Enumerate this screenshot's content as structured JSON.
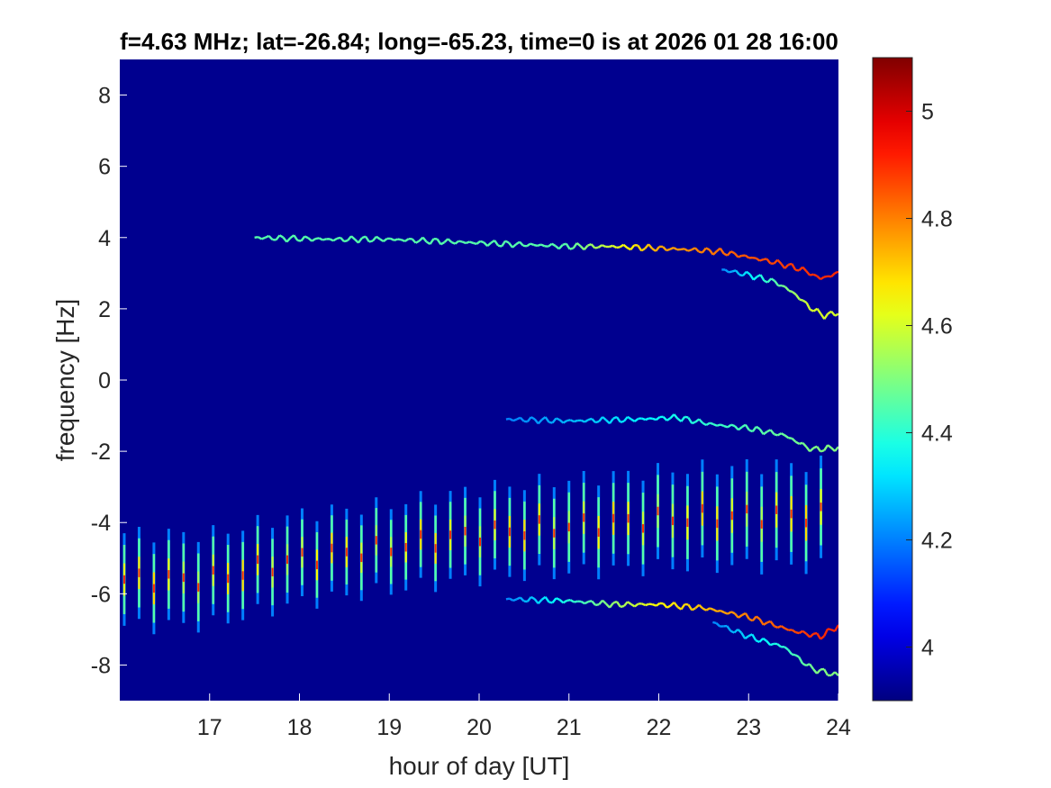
{
  "chart_data": {
    "type": "heatmap",
    "title": "f=4.63 MHz;  lat=-26.84; long=-65.23, time=0 is at 2026 01 28 16:00",
    "xlabel": "hour of day [UT]",
    "ylabel": "frequency [Hz]",
    "xlim": [
      16,
      24
    ],
    "ylim": [
      -9,
      9
    ],
    "x_ticks": [
      17,
      18,
      19,
      20,
      21,
      22,
      23,
      24
    ],
    "y_ticks": [
      -8,
      -6,
      -4,
      -2,
      0,
      2,
      4,
      6,
      8
    ],
    "background_value": 3.9,
    "colorbar": {
      "colormap": "jet",
      "clim": [
        3.9,
        5.1
      ],
      "ticks": [
        4,
        4.2,
        4.4,
        4.6,
        4.8,
        5
      ]
    },
    "traces": [
      {
        "points": [
          [
            17.5,
            4.0
          ],
          [
            18.3,
            3.95
          ],
          [
            19.0,
            3.95
          ],
          [
            19.5,
            3.9
          ],
          [
            20.0,
            3.85
          ],
          [
            20.5,
            3.8
          ],
          [
            21.0,
            3.75
          ],
          [
            21.5,
            3.75
          ],
          [
            22.0,
            3.7
          ],
          [
            22.4,
            3.65
          ],
          [
            22.7,
            3.6
          ],
          [
            23.0,
            3.45
          ],
          [
            23.3,
            3.3
          ],
          [
            23.6,
            3.1
          ],
          [
            23.8,
            2.85
          ],
          [
            24.0,
            3.0
          ]
        ],
        "peak": [
          [
            21.0,
            4.45
          ],
          [
            22.0,
            4.75
          ],
          [
            23.0,
            4.85
          ],
          [
            23.8,
            4.9
          ]
        ]
      },
      {
        "points": [
          [
            22.7,
            3.1
          ],
          [
            23.0,
            2.95
          ],
          [
            23.3,
            2.75
          ],
          [
            23.5,
            2.45
          ],
          [
            23.7,
            2.0
          ],
          [
            23.85,
            1.8
          ],
          [
            24.0,
            1.9
          ]
        ],
        "peak": [
          [
            22.7,
            4.2
          ],
          [
            23.7,
            4.6
          ]
        ]
      },
      {
        "points": [
          [
            20.3,
            -1.1
          ],
          [
            21.0,
            -1.15
          ],
          [
            21.8,
            -1.1
          ],
          [
            22.2,
            -1.05
          ],
          [
            22.6,
            -1.25
          ],
          [
            23.0,
            -1.35
          ],
          [
            23.4,
            -1.55
          ],
          [
            23.7,
            -1.95
          ],
          [
            24.0,
            -1.9
          ]
        ],
        "peak": [
          [
            20.3,
            4.2
          ],
          [
            22.5,
            4.4
          ],
          [
            23.8,
            4.5
          ]
        ]
      },
      {
        "points": [
          [
            20.3,
            -6.15
          ],
          [
            21.0,
            -6.2
          ],
          [
            21.5,
            -6.3
          ],
          [
            22.0,
            -6.3
          ],
          [
            22.5,
            -6.4
          ],
          [
            23.0,
            -6.65
          ],
          [
            23.5,
            -7.05
          ],
          [
            23.8,
            -7.2
          ],
          [
            24.0,
            -6.9
          ]
        ],
        "peak": [
          [
            20.3,
            4.2
          ],
          [
            22.0,
            4.65
          ],
          [
            23.0,
            4.8
          ],
          [
            23.8,
            4.9
          ]
        ]
      },
      {
        "points": [
          [
            22.6,
            -6.8
          ],
          [
            23.0,
            -7.2
          ],
          [
            23.4,
            -7.5
          ],
          [
            23.7,
            -8.1
          ],
          [
            24.0,
            -8.3
          ]
        ],
        "peak": [
          [
            22.6,
            4.2
          ],
          [
            23.8,
            4.5
          ]
        ]
      }
    ],
    "pulse_series": {
      "x_start": 16.05,
      "x_step": 0.165,
      "x_end": 23.9,
      "center": [
        [
          16.0,
          -5.6
        ],
        [
          17.0,
          -5.6
        ],
        [
          18.0,
          -5.0
        ],
        [
          19.0,
          -4.7
        ],
        [
          20.0,
          -4.3
        ],
        [
          21.0,
          -4.1
        ],
        [
          22.0,
          -3.9
        ],
        [
          23.0,
          -3.8
        ],
        [
          24.0,
          -3.8
        ]
      ],
      "half_length": [
        [
          16.0,
          1.3
        ],
        [
          19.0,
          1.2
        ],
        [
          21.0,
          1.3
        ],
        [
          24.0,
          1.45
        ]
      ],
      "peak": 4.7
    }
  }
}
